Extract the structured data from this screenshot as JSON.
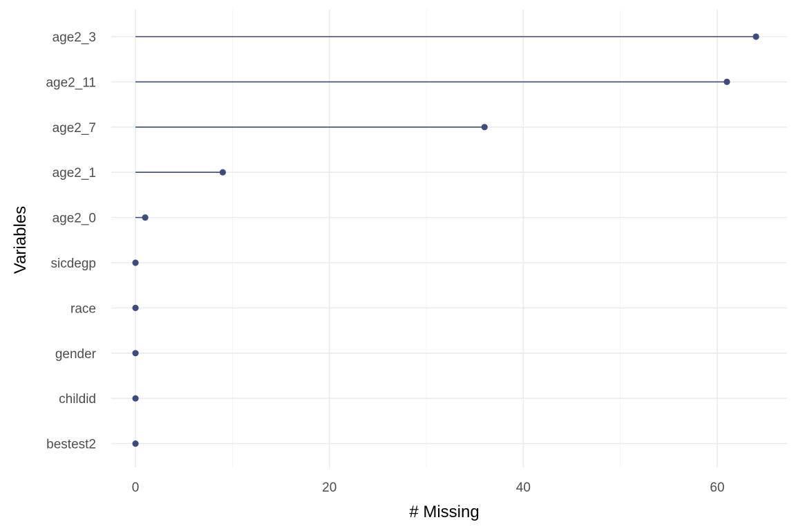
{
  "chart_data": {
    "type": "lollipop",
    "title": "",
    "xlabel": "# Missing",
    "ylabel": "Variables",
    "categories": [
      "age2_3",
      "age2_11",
      "age2_7",
      "age2_1",
      "age2_0",
      "sicdegp",
      "race",
      "gender",
      "childid",
      "bestest2"
    ],
    "values": [
      64,
      61,
      36,
      9,
      1,
      0,
      0,
      0,
      0,
      0
    ],
    "xlim": [
      -2.5,
      67.2
    ],
    "xticks": [
      0,
      20,
      40,
      60
    ],
    "grid": true,
    "legend": "none",
    "color": "#3f4b7d"
  }
}
